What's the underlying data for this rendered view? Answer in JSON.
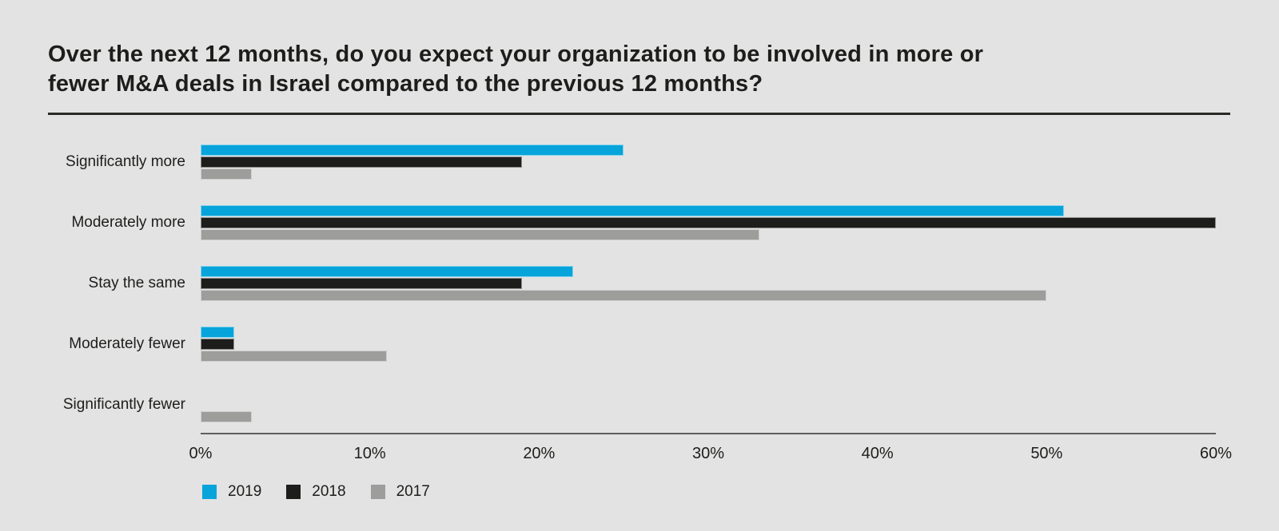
{
  "page": {
    "background": "#e3e3e3",
    "text_color": "#1d1d1b",
    "divider_color": "#2a2a28",
    "axis_line_color": "#5f5f5f"
  },
  "title": {
    "text": "Over the next 12 months, do you expect your organization to be involved in more or fewer M&A deals in Israel compared to the previous 12 months?",
    "line1": "Over the next 12 months, do you expect your organization to be involved in more or",
    "line2": "fewer M&A deals in Israel compared to the previous 12 months?"
  },
  "chart_data": {
    "type": "bar",
    "orientation": "horizontal",
    "title": "Over the next 12 months, do you expect your organization to be involved in more or fewer M&A deals in Israel compared to the previous 12 months?",
    "categories": [
      "Significantly more",
      "Moderately more",
      "Stay the same",
      "Moderately fewer",
      "Significantly fewer"
    ],
    "series": [
      {
        "name": "2019",
        "color": "#06a4da",
        "values": [
          25,
          51,
          22,
          2,
          0
        ]
      },
      {
        "name": "2018",
        "color": "#1d1d1b",
        "values": [
          19,
          60,
          19,
          2,
          0
        ]
      },
      {
        "name": "2017",
        "color": "#9d9d9c",
        "values": [
          3,
          33,
          50,
          11,
          3
        ]
      }
    ],
    "xlabel": "",
    "ylabel": "",
    "xlim": [
      0,
      60
    ],
    "x_ticks": [
      "0%",
      "10%",
      "20%",
      "30%",
      "40%",
      "50%",
      "60%"
    ],
    "x_tick_values": [
      0,
      10,
      20,
      30,
      40,
      50,
      60
    ],
    "grid": false,
    "legend_position": "bottom",
    "value_unit": "%"
  }
}
